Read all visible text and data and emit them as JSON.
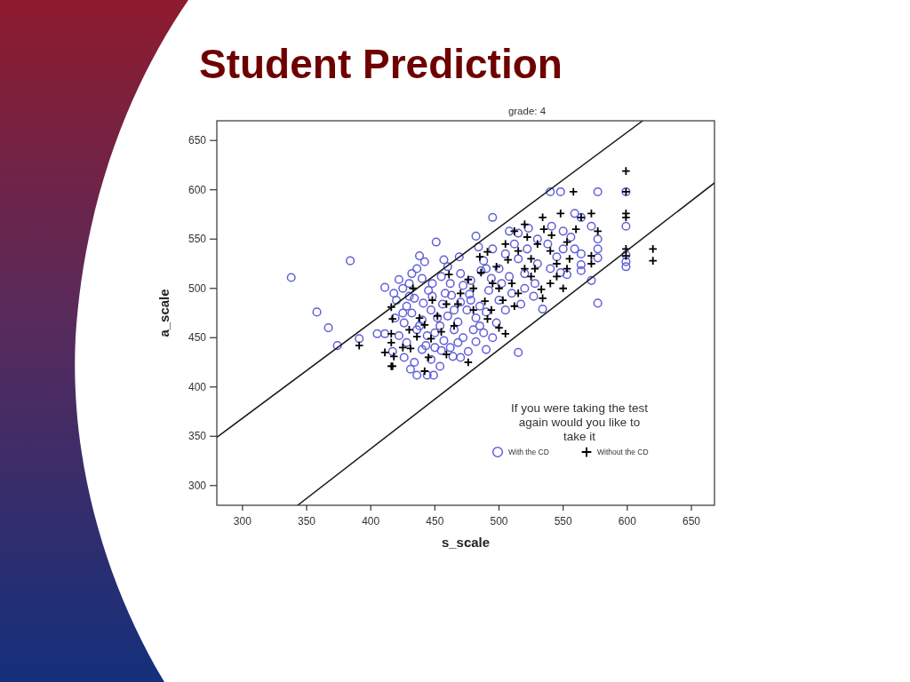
{
  "chart_data": {
    "type": "scatter",
    "title": "Student Prediction",
    "subtitle": "grade: 4",
    "xlabel": "s_scale",
    "ylabel": "a_scale",
    "legend_title": "If you were taking the test again would you like to take it",
    "legend": "bottom right",
    "xlim": [
      280,
      668
    ],
    "ylim": [
      280,
      670
    ],
    "xticks": [
      300,
      350,
      400,
      450,
      500,
      550,
      600,
      650
    ],
    "yticks": [
      300,
      350,
      400,
      450,
      500,
      550,
      600,
      650
    ],
    "series": [
      {
        "name": "With the CD",
        "color": "#6060d8",
        "marker": "circle",
        "x": [
          338,
          384,
          358,
          367,
          374,
          391,
          405,
          411,
          411,
          422,
          436,
          438,
          442,
          451,
          457,
          469,
          482,
          484,
          495,
          540,
          548,
          577,
          599,
          599,
          559,
          564,
          572,
          577,
          577,
          577,
          599,
          599,
          599,
          572,
          577,
          553,
          548,
          534,
          564,
          564,
          564,
          559,
          556,
          550,
          541,
          523,
          515,
          508,
          515,
          417,
          431,
          436,
          444,
          449,
          454,
          464,
          470,
          482,
          418,
          425,
          430,
          440,
          448,
          455,
          462,
          470,
          478,
          486,
          494,
          500,
          508,
          420,
          428,
          434,
          441,
          448,
          456,
          463,
          470,
          477,
          485,
          492,
          500,
          510,
          520,
          528,
          419,
          426,
          432,
          440,
          447,
          454,
          460,
          468,
          475,
          482,
          490,
          498,
          505,
          422,
          428,
          436,
          443,
          450,
          457,
          465,
          472,
          480,
          488,
          495,
          426,
          434,
          440,
          447,
          455,
          462,
          476,
          490,
          515,
          522,
          530,
          538,
          545,
          520,
          505,
          495,
          488,
          530,
          540,
          512,
          550,
          527,
          517,
          432,
          445,
          452,
          458,
          465,
          472,
          438,
          430,
          444,
          468,
          485,
          478,
          460,
          490,
          425,
          450,
          502
        ],
        "values": [
          511,
          528,
          476,
          460,
          442,
          449,
          454,
          454,
          501,
          509,
          520,
          533,
          527,
          547,
          529,
          532,
          553,
          542,
          572,
          598,
          598,
          598,
          598,
          563,
          576,
          572,
          563,
          550,
          540,
          531,
          534,
          527,
          522,
          508,
          485,
          514,
          516,
          479,
          518,
          524,
          535,
          540,
          552,
          558,
          563,
          561,
          556,
          558,
          435,
          436,
          418,
          412,
          412,
          412,
          421,
          431,
          430,
          446,
          495,
          500,
          505,
          510,
          505,
          512,
          505,
          515,
          508,
          518,
          510,
          520,
          512,
          488,
          482,
          490,
          485,
          492,
          484,
          493,
          486,
          494,
          482,
          498,
          488,
          495,
          500,
          505,
          470,
          465,
          475,
          468,
          478,
          462,
          472,
          466,
          478,
          470,
          476,
          465,
          478,
          452,
          445,
          458,
          442,
          455,
          447,
          458,
          450,
          458,
          455,
          450,
          430,
          425,
          438,
          428,
          437,
          440,
          436,
          438,
          530,
          540,
          525,
          545,
          532,
          515,
          535,
          540,
          528,
          550,
          520,
          545,
          540,
          492,
          484,
          515,
          498,
          470,
          495,
          478,
          503,
          462,
          492,
          452,
          445,
          462,
          488,
          522,
          520,
          475,
          440,
          505
        ]
      },
      {
        "name": "Without the CD",
        "color": "#000000",
        "marker": "cross",
        "x": [
          391,
          411,
          416,
          416,
          599,
          558,
          599,
          548,
          572,
          599,
          599,
          534,
          564,
          577,
          599,
          620,
          620,
          599,
          572,
          572,
          512,
          522,
          541,
          553,
          533,
          534,
          512,
          505,
          461,
          485,
          476,
          433,
          417,
          416,
          416,
          418,
          417,
          431,
          445,
          442,
          459,
          476,
          436,
          447,
          442,
          452,
          468,
          459,
          489,
          491,
          500,
          486,
          498,
          507,
          491,
          505,
          515,
          525,
          530,
          540,
          545,
          520,
          510,
          500,
          495,
          480,
          470,
          525,
          545,
          555,
          535,
          520,
          560,
          528,
          550,
          515,
          480,
          465,
          455,
          438,
          448,
          430,
          425,
          540,
          503,
          494,
          553
        ],
        "values": [
          442,
          435,
          481,
          421,
          619,
          598,
          598,
          576,
          576,
          576,
          572,
          572,
          572,
          558,
          540,
          540,
          528,
          533,
          533,
          525,
          558,
          552,
          554,
          547,
          499,
          490,
          482,
          454,
          514,
          532,
          509,
          500,
          469,
          454,
          445,
          431,
          421,
          439,
          430,
          416,
          433,
          425,
          451,
          449,
          463,
          472,
          484,
          484,
          487,
          469,
          460,
          516,
          522,
          529,
          537,
          545,
          538,
          530,
          545,
          538,
          525,
          520,
          505,
          500,
          505,
          500,
          495,
          512,
          512,
          530,
          560,
          565,
          560,
          520,
          500,
          495,
          478,
          462,
          456,
          470,
          488,
          458,
          440,
          505,
          488,
          478,
          520
        ]
      },
      {
        "type": "line",
        "color": "#1a1a1a",
        "line_style": "solid",
        "x": [
          280,
          612
        ],
        "values": [
          349,
          670
        ]
      },
      {
        "type": "line",
        "color": "#1a1a1a",
        "line_style": "solid",
        "x": [
          343,
          668
        ],
        "values": [
          280,
          607
        ]
      }
    ]
  }
}
